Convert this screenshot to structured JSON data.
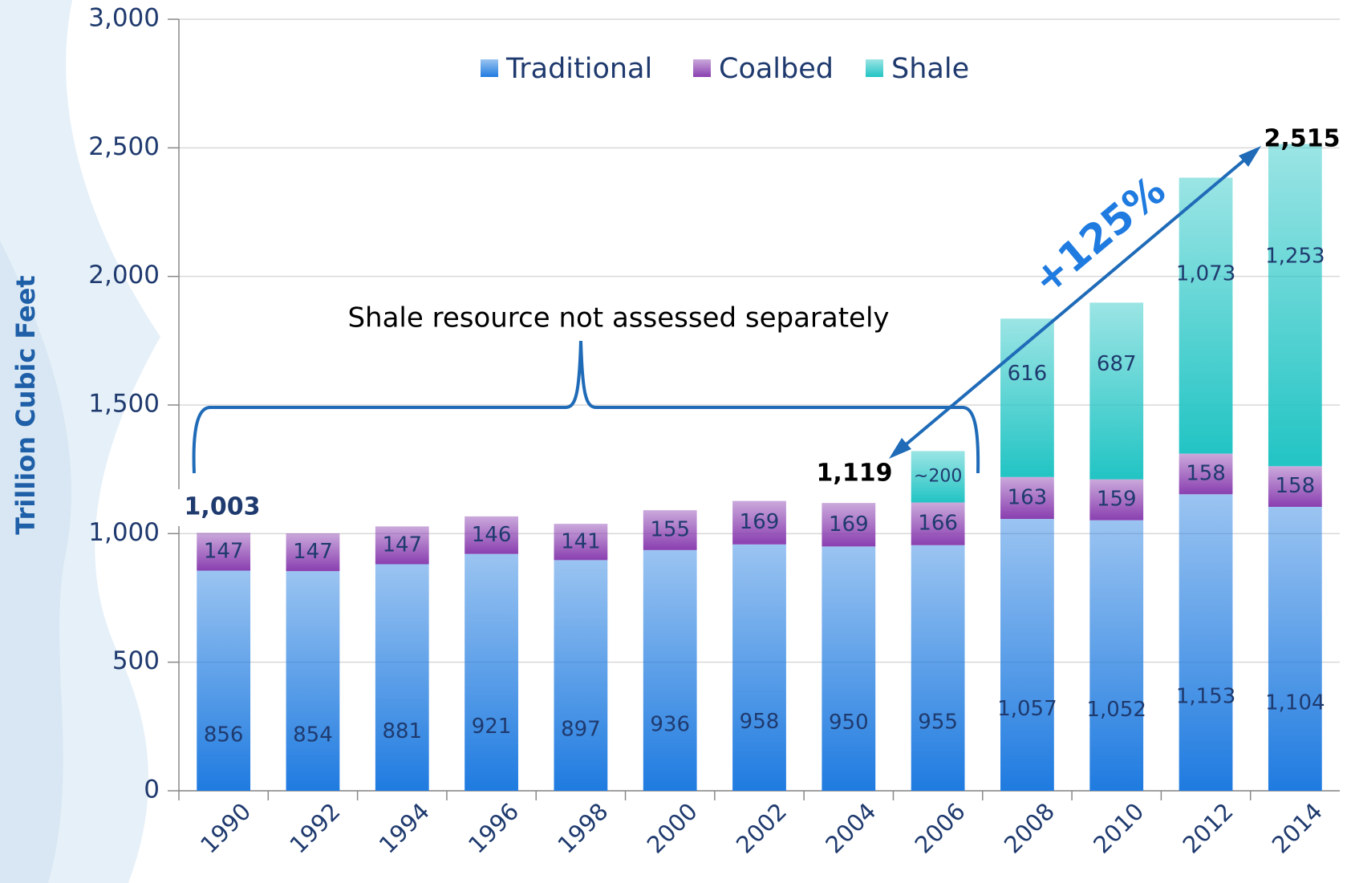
{
  "chart_data": {
    "type": "stacked_bar",
    "ylabel": "Trillion Cubic Feet",
    "categories": [
      "1990",
      "1992",
      "1994",
      "1996",
      "1998",
      "2000",
      "2002",
      "2004",
      "2006",
      "2008",
      "2010",
      "2012",
      "2014"
    ],
    "series": [
      {
        "name": "Traditional",
        "color": "#1f7be0",
        "values": [
          856,
          854,
          881,
          921,
          897,
          936,
          958,
          950,
          955,
          1057,
          1052,
          1153,
          1104
        ],
        "value_labels": [
          "856",
          "854",
          "881",
          "921",
          "897",
          "936",
          "958",
          "950",
          "955",
          "1,057",
          "1,052",
          "1,153",
          "1,104"
        ]
      },
      {
        "name": "Coalbed",
        "color": "#8a3fb0",
        "values": [
          147,
          147,
          147,
          146,
          141,
          155,
          169,
          169,
          166,
          163,
          159,
          158,
          158
        ]
      },
      {
        "name": "Shale",
        "color": "#22c4c4",
        "values": [
          null,
          null,
          null,
          null,
          null,
          null,
          null,
          null,
          200,
          616,
          687,
          1073,
          1253
        ],
        "value_labels": [
          null,
          null,
          null,
          null,
          null,
          null,
          null,
          null,
          "~200",
          "616",
          "687",
          "1,073",
          "1,253"
        ]
      }
    ],
    "ylim": [
      0,
      3000
    ],
    "yticks": [
      0,
      500,
      {
        "value": 1000,
        "label": "1,000"
      },
      {
        "value": 1500,
        "label": "1,500"
      },
      {
        "value": 2000,
        "label": "2,000"
      },
      {
        "value": 2500,
        "label": "2,500"
      },
      {
        "value": 3000,
        "label": "3,000"
      }
    ],
    "grid": true,
    "legend": "top",
    "annotations": [
      {
        "text": "1,003"
      },
      {
        "text": "1,119"
      },
      {
        "text": "2,515"
      },
      {
        "text": "+125%"
      },
      {
        "text": "Shale resource not assessed separately"
      }
    ]
  }
}
